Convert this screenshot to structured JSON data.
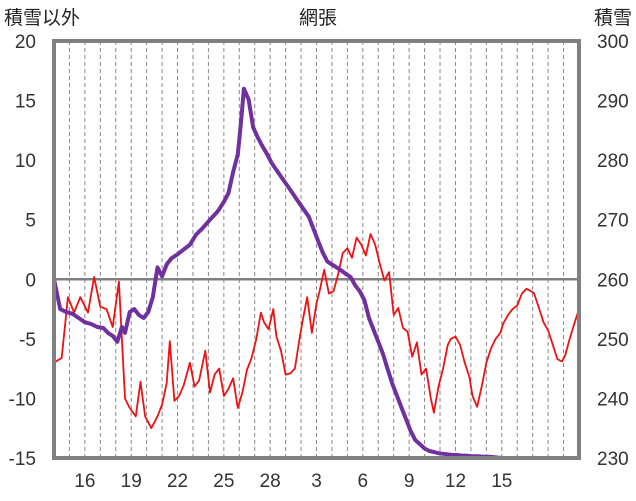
{
  "chart_data": {
    "type": "line",
    "title": "網張",
    "ylabel_left": "積雪以外",
    "ylabel_right": "積雪",
    "left_axis": {
      "min": -15,
      "max": 20,
      "ticks": [
        20,
        15,
        10,
        5,
        0,
        -5,
        -10,
        -15
      ]
    },
    "right_axis": {
      "min": 230,
      "max": 300,
      "ticks": [
        300,
        290,
        280,
        270,
        260,
        250,
        240,
        230
      ]
    },
    "x_axis": {
      "day_min": 0,
      "day_max": 34,
      "labels": [
        "16",
        "19",
        "22",
        "25",
        "28",
        "3",
        "6",
        "9",
        "12",
        "15"
      ],
      "label_days": [
        2,
        5,
        8,
        11,
        14,
        17,
        20,
        23,
        26,
        29
      ]
    },
    "gridlines": "vertical dashed daily, solid zero line",
    "series": [
      {
        "axis": "left",
        "color": "#ee1111",
        "points": [
          [
            0,
            -7
          ],
          [
            0.5,
            -6.6
          ],
          [
            0.9,
            -1.5
          ],
          [
            1.3,
            -2.8
          ],
          [
            1.7,
            -1.5
          ],
          [
            2.2,
            -2.8
          ],
          [
            2.6,
            0.2
          ],
          [
            3,
            -2.3
          ],
          [
            3.4,
            -2.5
          ],
          [
            3.8,
            -4
          ],
          [
            4.2,
            -0.2
          ],
          [
            4.6,
            -10
          ],
          [
            4.9,
            -10.8
          ],
          [
            5.3,
            -11.5
          ],
          [
            5.6,
            -8.6
          ],
          [
            5.9,
            -11.5
          ],
          [
            6.3,
            -12.5
          ],
          [
            6.7,
            -11.5
          ],
          [
            7.0,
            -10.5
          ],
          [
            7.3,
            -8.7
          ],
          [
            7.5,
            -5.2
          ],
          [
            7.8,
            -10.2
          ],
          [
            8.1,
            -9.8
          ],
          [
            8.4,
            -8.9
          ],
          [
            8.8,
            -7
          ],
          [
            9.1,
            -9
          ],
          [
            9.4,
            -8.5
          ],
          [
            9.8,
            -6
          ],
          [
            10.1,
            -9.5
          ],
          [
            10.4,
            -8
          ],
          [
            10.7,
            -7.5
          ],
          [
            11,
            -9.8
          ],
          [
            11.3,
            -9.2
          ],
          [
            11.6,
            -8.3
          ],
          [
            11.9,
            -10.8
          ],
          [
            12.2,
            -9.5
          ],
          [
            12.5,
            -7.6
          ],
          [
            12.8,
            -6.6
          ],
          [
            13.1,
            -5
          ],
          [
            13.4,
            -2.8
          ],
          [
            13.6,
            -3.6
          ],
          [
            13.9,
            -4.2
          ],
          [
            14.2,
            -2.5
          ],
          [
            14.4,
            -4.8
          ],
          [
            14.7,
            -6
          ],
          [
            15,
            -8
          ],
          [
            15.3,
            -7.9
          ],
          [
            15.6,
            -7.5
          ],
          [
            15.9,
            -5
          ],
          [
            16.1,
            -3.5
          ],
          [
            16.4,
            -1.5
          ],
          [
            16.7,
            -4.5
          ],
          [
            17,
            -2
          ],
          [
            17.2,
            -1
          ],
          [
            17.5,
            0.8
          ],
          [
            17.8,
            -1.2
          ],
          [
            18.1,
            -1
          ],
          [
            18.4,
            0.4
          ],
          [
            18.7,
            2.2
          ],
          [
            19,
            2.6
          ],
          [
            19.3,
            1.8
          ],
          [
            19.6,
            3.5
          ],
          [
            19.9,
            2.9
          ],
          [
            20.2,
            2
          ],
          [
            20.5,
            3.8
          ],
          [
            20.8,
            2.9
          ],
          [
            21.1,
            1.3
          ],
          [
            21.4,
            -0.1
          ],
          [
            21.7,
            0.6
          ],
          [
            22,
            -3
          ],
          [
            22.3,
            -2.4
          ],
          [
            22.6,
            -4.1
          ],
          [
            22.9,
            -4.4
          ],
          [
            23.2,
            -6.5
          ],
          [
            23.5,
            -5.3
          ],
          [
            23.8,
            -8
          ],
          [
            24.1,
            -7.5
          ],
          [
            24.4,
            -10
          ],
          [
            24.6,
            -11.2
          ],
          [
            24.9,
            -9
          ],
          [
            25.2,
            -7.5
          ],
          [
            25.5,
            -5.5
          ],
          [
            25.7,
            -5
          ],
          [
            26,
            -4.8
          ],
          [
            26.3,
            -5.5
          ],
          [
            26.6,
            -7
          ],
          [
            26.9,
            -8.2
          ],
          [
            27.1,
            -9.8
          ],
          [
            27.4,
            -10.7
          ],
          [
            27.7,
            -9
          ],
          [
            28,
            -7
          ],
          [
            28.3,
            -5.8
          ],
          [
            28.6,
            -5
          ],
          [
            28.9,
            -4.5
          ],
          [
            29.1,
            -3.7
          ],
          [
            29.4,
            -3
          ],
          [
            29.7,
            -2.5
          ],
          [
            30,
            -2.2
          ],
          [
            30.3,
            -1.2
          ],
          [
            30.6,
            -0.8
          ],
          [
            30.9,
            -1
          ],
          [
            31.1,
            -1.2
          ],
          [
            31.4,
            -2.4
          ],
          [
            31.7,
            -3.6
          ],
          [
            32,
            -4.3
          ],
          [
            32.3,
            -5.5
          ],
          [
            32.6,
            -6.7
          ],
          [
            32.9,
            -6.9
          ],
          [
            33.1,
            -6.4
          ],
          [
            33.4,
            -5
          ],
          [
            33.7,
            -3.7
          ],
          [
            34,
            -2.5
          ]
        ]
      },
      {
        "axis": "right",
        "color": "#7030a0",
        "points": [
          [
            0,
            260
          ],
          [
            0.4,
            255
          ],
          [
            0.8,
            254.5
          ],
          [
            1.2,
            254.2
          ],
          [
            1.6,
            253.5
          ],
          [
            2,
            252.8
          ],
          [
            2.4,
            252.5
          ],
          [
            2.8,
            252
          ],
          [
            3.2,
            251.8
          ],
          [
            3.5,
            251
          ],
          [
            3.8,
            250.5
          ],
          [
            4.1,
            249.5
          ],
          [
            4.4,
            252
          ],
          [
            4.6,
            251
          ],
          [
            4.9,
            254.5
          ],
          [
            5.2,
            255
          ],
          [
            5.5,
            254
          ],
          [
            5.8,
            253.5
          ],
          [
            6.1,
            254.5
          ],
          [
            6.4,
            257
          ],
          [
            6.7,
            262
          ],
          [
            7,
            260.5
          ],
          [
            7.3,
            262.5
          ],
          [
            7.6,
            263.5
          ],
          [
            8,
            264.2
          ],
          [
            8.4,
            265
          ],
          [
            8.8,
            265.8
          ],
          [
            9.2,
            267.5
          ],
          [
            9.6,
            268.5
          ],
          [
            10.1,
            270
          ],
          [
            10.6,
            271.4
          ],
          [
            11,
            273
          ],
          [
            11.3,
            274.5
          ],
          [
            11.6,
            278
          ],
          [
            11.9,
            281
          ],
          [
            12.1,
            286
          ],
          [
            12.3,
            292
          ],
          [
            12.6,
            290.2
          ],
          [
            12.9,
            285.5
          ],
          [
            13.2,
            283.8
          ],
          [
            13.5,
            282.3
          ],
          [
            13.8,
            281
          ],
          [
            14.1,
            279.5
          ],
          [
            14.5,
            278
          ],
          [
            14.9,
            276.5
          ],
          [
            15.3,
            275
          ],
          [
            15.7,
            273.5
          ],
          [
            16.1,
            272
          ],
          [
            16.5,
            270.5
          ],
          [
            16.8,
            268.5
          ],
          [
            17.1,
            266.5
          ],
          [
            17.4,
            264.5
          ],
          [
            17.7,
            263
          ],
          [
            18,
            262.5
          ],
          [
            18.3,
            262
          ],
          [
            18.6,
            261.5
          ],
          [
            18.9,
            260.9
          ],
          [
            19.2,
            260.4
          ],
          [
            19.5,
            259
          ],
          [
            19.8,
            258
          ],
          [
            20.1,
            256.5
          ],
          [
            20.4,
            253.5
          ],
          [
            20.7,
            251.5
          ],
          [
            21,
            249.5
          ],
          [
            21.3,
            247.5
          ],
          [
            21.6,
            245
          ],
          [
            21.9,
            242.5
          ],
          [
            22.2,
            240.5
          ],
          [
            22.5,
            238.5
          ],
          [
            22.8,
            236.5
          ],
          [
            23.1,
            234.5
          ],
          [
            23.4,
            233
          ],
          [
            23.7,
            232.3
          ],
          [
            24,
            231.6
          ],
          [
            24.3,
            231.2
          ],
          [
            24.6,
            231
          ],
          [
            24.9,
            230.8
          ],
          [
            25.2,
            230.7
          ],
          [
            25.5,
            230.6
          ],
          [
            25.8,
            230.5
          ],
          [
            26.1,
            230.5
          ],
          [
            26.4,
            230.4
          ],
          [
            26.7,
            230.4
          ],
          [
            27,
            230.3
          ],
          [
            27.4,
            230.3
          ],
          [
            27.8,
            230.2
          ],
          [
            28.2,
            230.2
          ],
          [
            28.6,
            230.1
          ],
          [
            29,
            230
          ],
          [
            29.4,
            230
          ],
          [
            29.8,
            230
          ],
          [
            30.2,
            230
          ],
          [
            30.6,
            230
          ],
          [
            31,
            230
          ],
          [
            31.4,
            230
          ],
          [
            31.8,
            230
          ],
          [
            32.2,
            230
          ],
          [
            32.6,
            230
          ],
          [
            33,
            230
          ],
          [
            33.4,
            230
          ],
          [
            33.8,
            230
          ],
          [
            34,
            230
          ]
        ]
      }
    ]
  }
}
